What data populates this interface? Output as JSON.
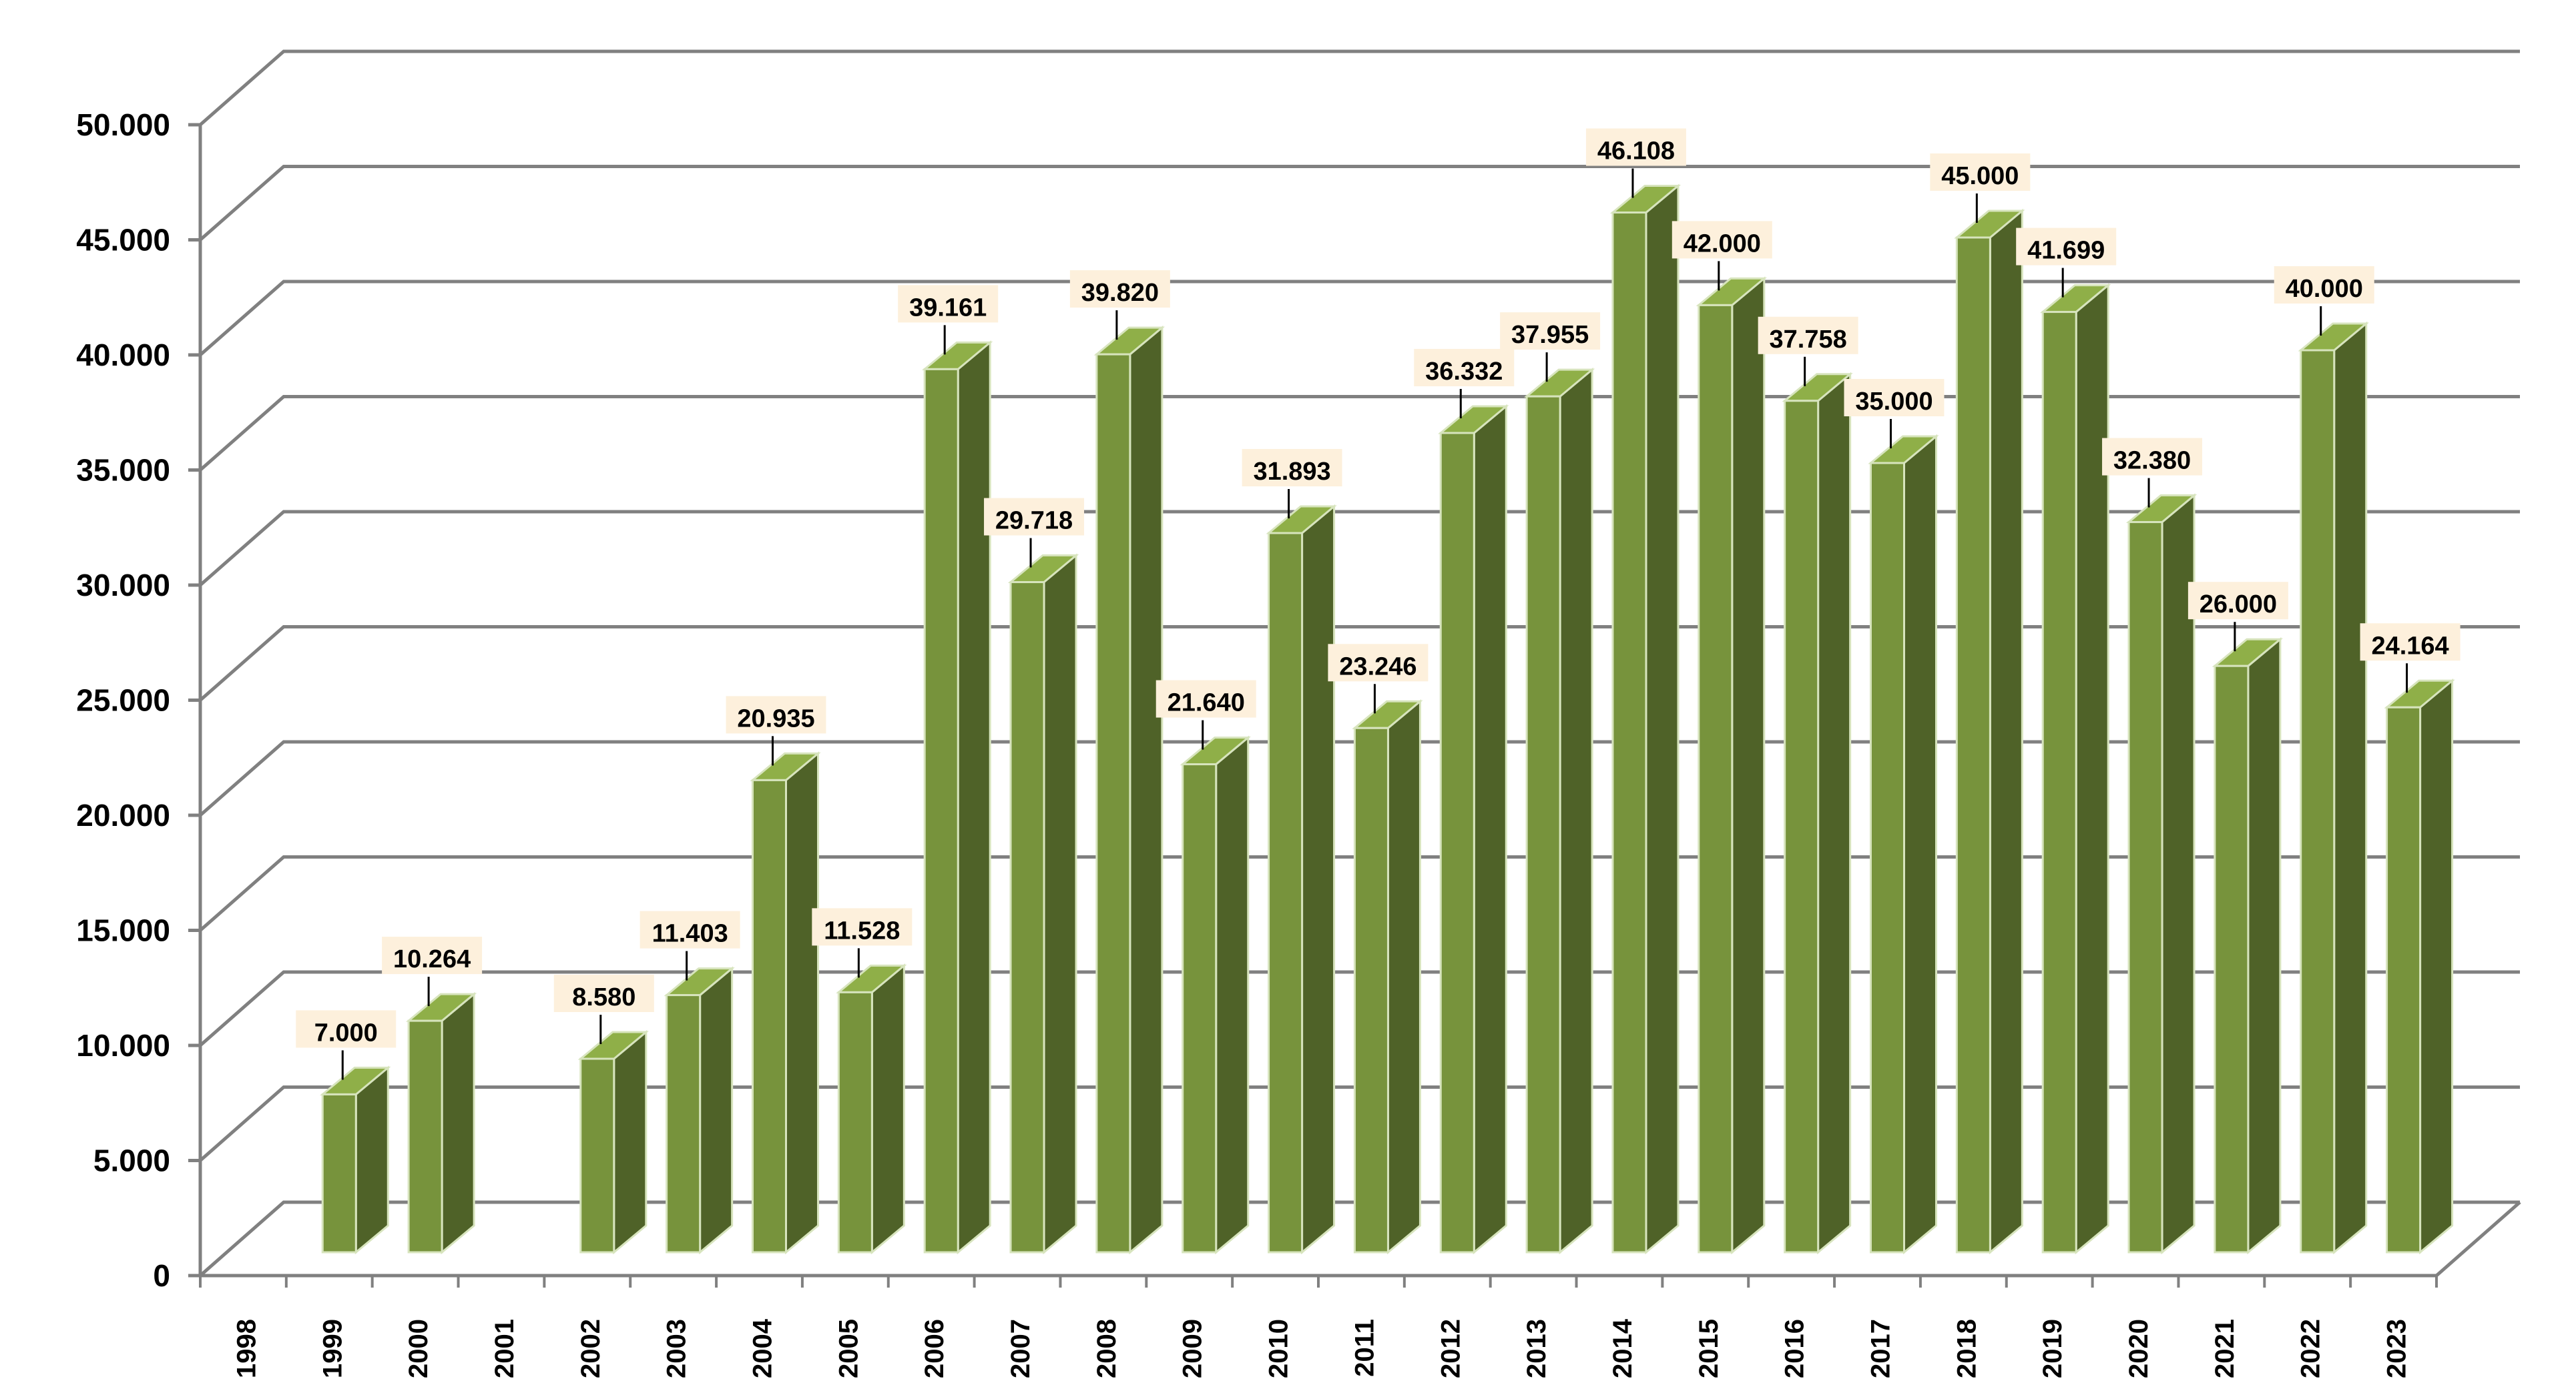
{
  "chart_data": {
    "type": "bar",
    "style": "3d-clustered-column",
    "categories": [
      "1998",
      "1999",
      "2000",
      "2001",
      "2002",
      "2003",
      "2004",
      "2005",
      "2006",
      "2007",
      "2008",
      "2009",
      "2010",
      "2011",
      "2012",
      "2013",
      "2014",
      "2015",
      "2016",
      "2017",
      "2018",
      "2019",
      "2020",
      "2021",
      "2022",
      "2023"
    ],
    "values": [
      null,
      7000,
      10264,
      null,
      8580,
      11403,
      20935,
      11528,
      39161,
      29718,
      39820,
      21640,
      31893,
      23246,
      36332,
      37955,
      46108,
      42000,
      37758,
      35000,
      45000,
      41699,
      32380,
      26000,
      40000,
      24164
    ],
    "value_labels": [
      "",
      "7.000",
      "10.264",
      "",
      "8.580",
      "11.403",
      "20.935",
      "11.528",
      "39.161",
      "29.718",
      "39.820",
      "21.640",
      "31.893",
      "23.246",
      "36.332",
      "37.955",
      "46.108",
      "42.000",
      "37.758",
      "35.000",
      "45.000",
      "41.699",
      "32.380",
      "26.000",
      "40.000",
      "24.164"
    ],
    "yticks": [
      "0",
      "5.000",
      "10.000",
      "15.000",
      "20.000",
      "25.000",
      "30.000",
      "35.000",
      "40.000",
      "45.000",
      "50.000"
    ],
    "ylim": [
      0,
      50000
    ],
    "title": "",
    "xlabel": "",
    "ylabel": "",
    "grid": true,
    "legend": "none",
    "colors": {
      "bar_front": "#77933C",
      "bar_side": "#4F6228",
      "bar_top": "#8FAF48",
      "bar_edge": "#D7E4BD",
      "gridline": "#808080",
      "axis": "#808080",
      "label_box": "#FDF0DC"
    }
  }
}
